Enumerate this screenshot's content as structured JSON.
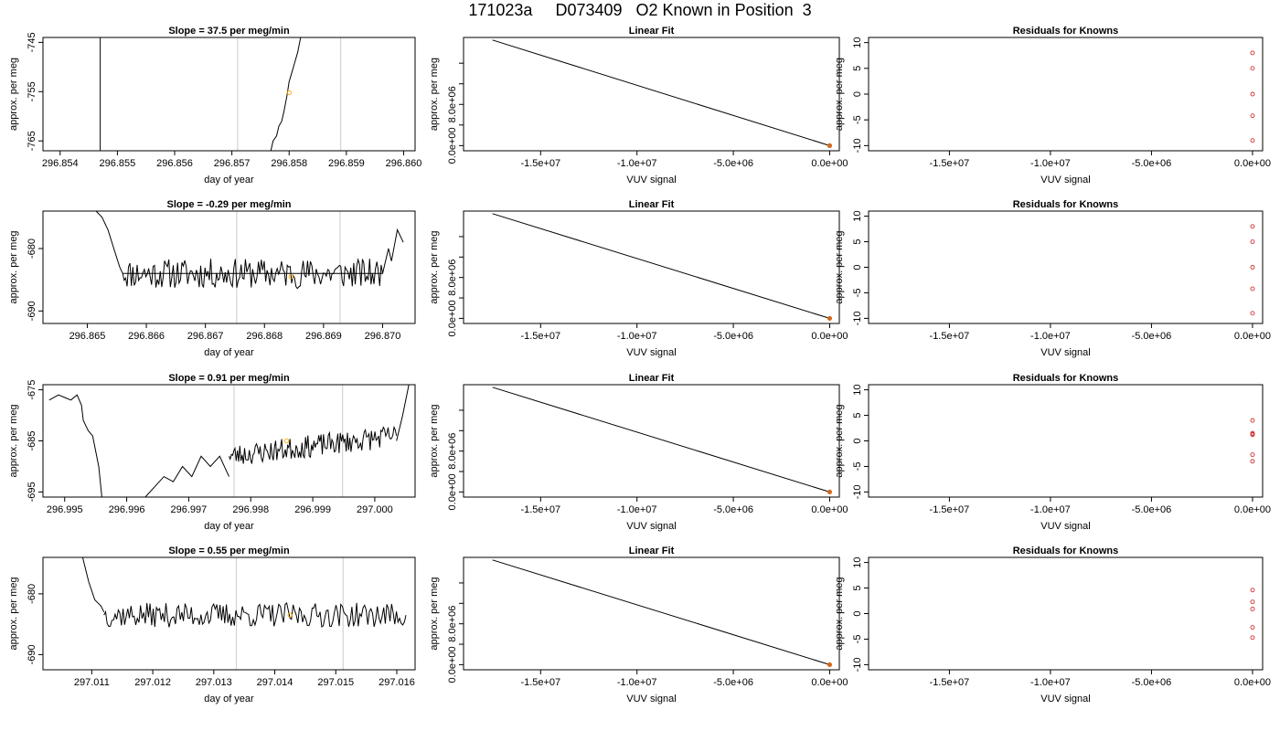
{
  "page_title": "171023a     D073409   O2 Known in Position  3",
  "colors": {
    "trace": "#000000",
    "known_point": "#ffa500",
    "fit_point": "#d2691e",
    "residual_point": "#cd3333",
    "marker_line": "#d3d3d3"
  },
  "chart_data": [
    {
      "type": "line",
      "panel": "time-series-1",
      "title": "Slope =  37.5  per meg/min",
      "xlabel": "day of year",
      "ylabel": "approx. per meg",
      "xlim": [
        296.8537,
        296.8602
      ],
      "ylim": [
        -767,
        -744
      ],
      "xticks": [
        296.854,
        296.855,
        296.856,
        296.857,
        296.858,
        296.859,
        296.86
      ],
      "xtick_labels": [
        "296.854",
        "296.855",
        "296.856",
        "296.857",
        "296.858",
        "296.859",
        "296.860"
      ],
      "yticks": [
        -745,
        -755,
        -765
      ],
      "ytick_labels": [
        "-745",
        "-755",
        "-765"
      ],
      "vlines": [
        296.8571,
        296.8589
      ],
      "series": [
        {
          "x": [
            296.8547,
            296.8547
          ],
          "y": [
            -744,
            -767
          ]
        },
        {
          "x": [
            296.85768,
            296.85772,
            296.85778,
            296.85782,
            296.85787,
            296.85791,
            296.85796,
            296.858,
            296.85805,
            296.8581,
            296.85815,
            296.8582
          ],
          "y": [
            -767,
            -765,
            -764,
            -762,
            -761,
            -759,
            -756,
            -753,
            -751,
            -749,
            -747,
            -744
          ]
        }
      ],
      "point": {
        "x": 296.858,
        "y": -755.2
      }
    },
    {
      "type": "line",
      "panel": "linear-fit-1",
      "title": "Linear Fit",
      "xlabel": "VUV signal",
      "ylabel": "approx. per meg",
      "xlim": [
        -19000000,
        500000
      ],
      "ylim": [
        -1000000,
        21000000
      ],
      "xticks": [
        -15000000,
        -10000000,
        -5000000,
        0
      ],
      "xtick_labels": [
        "-1.5e+07",
        "-1.0e+07",
        "-5.0e+06",
        "0.0e+00"
      ],
      "yticks": [
        0,
        4000000,
        8000000,
        12000000,
        16000000
      ],
      "ytick_labels": [
        "0.0e+00",
        "",
        "8.0e+06",
        "",
        ""
      ],
      "line": {
        "x": [
          -17500000,
          0
        ],
        "y": [
          20500000,
          0
        ]
      },
      "points": [
        {
          "x": 0,
          "y": 0
        }
      ]
    },
    {
      "type": "scatter",
      "panel": "residuals-1",
      "title": "Residuals for Knowns",
      "xlabel": "VUV signal",
      "ylabel": "approx. per meg",
      "xlim": [
        -19000000,
        500000
      ],
      "ylim": [
        -11,
        11
      ],
      "xticks": [
        -15000000,
        -10000000,
        -5000000,
        0
      ],
      "xtick_labels": [
        "-1.5e+07",
        "-1.0e+07",
        "-5.0e+06",
        "0.0e+00"
      ],
      "yticks": [
        10,
        5,
        0,
        -5,
        -10
      ],
      "ytick_labels": [
        "10",
        "5",
        "0",
        "-5",
        "-10"
      ],
      "x": [
        0,
        0,
        0,
        0,
        0
      ],
      "y": [
        8,
        5,
        0,
        -4.2,
        -9
      ]
    },
    {
      "type": "line",
      "panel": "time-series-2",
      "title": "Slope =  -0.29  per meg/min",
      "xlabel": "day of year",
      "ylabel": "approx. per meg",
      "xlim": [
        296.86425,
        296.87055
      ],
      "ylim": [
        -692,
        -674
      ],
      "xticks": [
        296.865,
        296.866,
        296.867,
        296.868,
        296.869,
        296.87
      ],
      "xtick_labels": [
        "296.865",
        "296.866",
        "296.867",
        "296.868",
        "296.869",
        "296.870"
      ],
      "yticks": [
        -680,
        -690
      ],
      "ytick_labels": [
        "-680",
        "-690"
      ],
      "vlines": [
        296.86753,
        296.86928
      ],
      "noise": {
        "seed": 11,
        "amp": 2.4,
        "n": 180
      },
      "series": [
        {
          "x": [
            296.86515,
            296.86525,
            296.86535,
            296.86545,
            296.86555,
            296.8656,
            296.87,
            296.8701,
            296.87015,
            296.87025,
            296.87035
          ],
          "y": [
            -674,
            -675,
            -677,
            -680,
            -683,
            -684,
            -684,
            -680,
            -682,
            -677,
            -679
          ]
        }
      ],
      "point": {
        "x": 296.86845,
        "y": -684.5
      }
    },
    {
      "type": "line",
      "panel": "linear-fit-2",
      "title": "Linear Fit",
      "xlabel": "VUV signal",
      "ylabel": "approx. per meg",
      "xlim": [
        -19000000,
        500000
      ],
      "ylim": [
        -1000000,
        21000000
      ],
      "xticks": [
        -15000000,
        -10000000,
        -5000000,
        0
      ],
      "xtick_labels": [
        "-1.5e+07",
        "-1.0e+07",
        "-5.0e+06",
        "0.0e+00"
      ],
      "yticks": [
        0,
        4000000,
        8000000,
        12000000,
        16000000
      ],
      "ytick_labels": [
        "0.0e+00",
        "",
        "8.0e+06",
        "",
        ""
      ],
      "line": {
        "x": [
          -17500000,
          0
        ],
        "y": [
          20500000,
          0
        ]
      },
      "points": [
        {
          "x": 0,
          "y": 0
        }
      ]
    },
    {
      "type": "scatter",
      "panel": "residuals-2",
      "title": "Residuals for Knowns",
      "xlabel": "VUV signal",
      "ylabel": "approx. per meg",
      "xlim": [
        -19000000,
        500000
      ],
      "ylim": [
        -11,
        11
      ],
      "xticks": [
        -15000000,
        -10000000,
        -5000000,
        0
      ],
      "xtick_labels": [
        "-1.5e+07",
        "-1.0e+07",
        "-5.0e+06",
        "0.0e+00"
      ],
      "yticks": [
        10,
        5,
        0,
        -5,
        -10
      ],
      "ytick_labels": [
        "10",
        "5",
        "0",
        "-5",
        "-10"
      ],
      "x": [
        0,
        0,
        0,
        0,
        0
      ],
      "y": [
        8,
        5,
        0,
        -4.2,
        -9
      ]
    },
    {
      "type": "line",
      "panel": "time-series-3",
      "title": "Slope =  0.91  per meg/min",
      "xlabel": "day of year",
      "ylabel": "approx. per meg",
      "xlim": [
        296.99465,
        297.00065
      ],
      "ylim": [
        -696,
        -674
      ],
      "xticks": [
        296.995,
        296.996,
        296.997,
        296.998,
        296.999,
        297.0
      ],
      "xtick_labels": [
        "296.995",
        "296.996",
        "296.997",
        "296.998",
        "296.999",
        "297.000"
      ],
      "yticks": [
        -675,
        -685,
        -695
      ],
      "ytick_labels": [
        "-675",
        "-685",
        "-695"
      ],
      "vlines": [
        296.99773,
        296.99948
      ],
      "series": [
        {
          "x": [
            296.99475,
            296.9949,
            296.995,
            296.9951,
            296.9952,
            296.99527,
            296.9953,
            296.99538,
            296.99545
          ],
          "y": [
            -677,
            -676,
            -676.5,
            -677,
            -676,
            -678,
            -681,
            -683,
            -684
          ]
        },
        {
          "x": [
            296.99545,
            296.99555,
            296.9956
          ],
          "y": [
            -684,
            -690,
            -696
          ]
        },
        {
          "x": [
            296.9963,
            296.99645,
            296.9966,
            296.99675,
            296.9969,
            296.99705,
            296.9972,
            296.99735,
            296.9975,
            296.99765
          ],
          "y": [
            -696,
            -694,
            -692,
            -693,
            -690,
            -692,
            -688,
            -690,
            -688,
            -692
          ]
        },
        {
          "x": [
            297.00035,
            297.00045,
            297.00055
          ],
          "y": [
            -685,
            -680,
            -674
          ]
        }
      ],
      "noise": {
        "seed": 23,
        "amp": 2.2,
        "n": 140,
        "x0": 296.99765,
        "x1": 297.00035,
        "base0": -688,
        "base1": -684
      },
      "point": {
        "x": 296.99858,
        "y": -685
      }
    },
    {
      "type": "line",
      "panel": "linear-fit-3",
      "title": "Linear Fit",
      "xlabel": "VUV signal",
      "ylabel": "approx. per meg",
      "xlim": [
        -19000000,
        500000
      ],
      "ylim": [
        -1000000,
        21000000
      ],
      "xticks": [
        -15000000,
        -10000000,
        -5000000,
        0
      ],
      "xtick_labels": [
        "-1.5e+07",
        "-1.0e+07",
        "-5.0e+06",
        "0.0e+00"
      ],
      "yticks": [
        0,
        4000000,
        8000000,
        12000000,
        16000000
      ],
      "ytick_labels": [
        "0.0e+00",
        "",
        "8.0e+06",
        "",
        ""
      ],
      "line": {
        "x": [
          -17500000,
          0
        ],
        "y": [
          20500000,
          0
        ]
      },
      "points": [
        {
          "x": 0,
          "y": 0
        }
      ]
    },
    {
      "type": "scatter",
      "panel": "residuals-3",
      "title": "Residuals for Knowns",
      "xlabel": "VUV signal",
      "ylabel": "approx. per meg",
      "xlim": [
        -19000000,
        500000
      ],
      "ylim": [
        -11,
        11
      ],
      "xticks": [
        -15000000,
        -10000000,
        -5000000,
        0
      ],
      "xtick_labels": [
        "-1.5e+07",
        "-1.0e+07",
        "-5.0e+06",
        "0.0e+00"
      ],
      "yticks": [
        10,
        5,
        0,
        -5,
        -10
      ],
      "ytick_labels": [
        "10",
        "5",
        "0",
        "-5",
        "-10"
      ],
      "x": [
        0,
        0,
        0,
        0,
        0,
        0
      ],
      "y": [
        4,
        1.5,
        1.2,
        -2.7,
        -4,
        1.3
      ]
    },
    {
      "type": "line",
      "panel": "time-series-4",
      "title": "Slope =  0.55  per meg/min",
      "xlabel": "day of year",
      "ylabel": "approx. per meg",
      "xlim": [
        297.0102,
        297.0163
      ],
      "ylim": [
        -692.5,
        -674
      ],
      "xticks": [
        297.011,
        297.012,
        297.013,
        297.014,
        297.015,
        297.016
      ],
      "xtick_labels": [
        "297.011",
        "297.012",
        "297.013",
        "297.014",
        "297.015",
        "297.016"
      ],
      "yticks": [
        -680,
        -690
      ],
      "ytick_labels": [
        "-680",
        "-690"
      ],
      "vlines": [
        297.01337,
        297.01512
      ],
      "series": [
        {
          "x": [
            297.01085,
            297.01095,
            297.01105,
            297.01115,
            297.0112
          ],
          "y": [
            -674,
            -678,
            -681,
            -682,
            -683
          ]
        }
      ],
      "noise": {
        "seed": 37,
        "amp": 2.0,
        "n": 190,
        "x0": 297.0112,
        "x1": 297.01615,
        "base0": -683.5,
        "base1": -683.5
      },
      "point": {
        "x": 297.01425,
        "y": -683.5
      }
    },
    {
      "type": "line",
      "panel": "linear-fit-4",
      "title": "Linear Fit",
      "xlabel": "VUV signal",
      "ylabel": "approx. per meg",
      "xlim": [
        -19000000,
        500000
      ],
      "ylim": [
        -1000000,
        21000000
      ],
      "xticks": [
        -15000000,
        -10000000,
        -5000000,
        0
      ],
      "xtick_labels": [
        "-1.5e+07",
        "-1.0e+07",
        "-5.0e+06",
        "0.0e+00"
      ],
      "yticks": [
        0,
        4000000,
        8000000,
        12000000,
        16000000
      ],
      "ytick_labels": [
        "0.0e+00",
        "",
        "8.0e+06",
        "",
        ""
      ],
      "line": {
        "x": [
          -17500000,
          0
        ],
        "y": [
          20500000,
          0
        ]
      },
      "points": [
        {
          "x": 0,
          "y": 0
        }
      ]
    },
    {
      "type": "scatter",
      "panel": "residuals-4",
      "title": "Residuals for Knowns",
      "xlabel": "VUV signal",
      "ylabel": "approx. per meg",
      "xlim": [
        -19000000,
        500000
      ],
      "ylim": [
        -11,
        11
      ],
      "xticks": [
        -15000000,
        -10000000,
        -5000000,
        0
      ],
      "xtick_labels": [
        "-1.5e+07",
        "-1.0e+07",
        "-5.0e+06",
        "0.0e+00"
      ],
      "yticks": [
        10,
        5,
        0,
        -5,
        -10
      ],
      "ytick_labels": [
        "10",
        "5",
        "0",
        "-5",
        "-10"
      ],
      "x": [
        0,
        0,
        0,
        0,
        0
      ],
      "y": [
        4.6,
        2.3,
        0.9,
        -2.7,
        -4.7
      ]
    }
  ]
}
